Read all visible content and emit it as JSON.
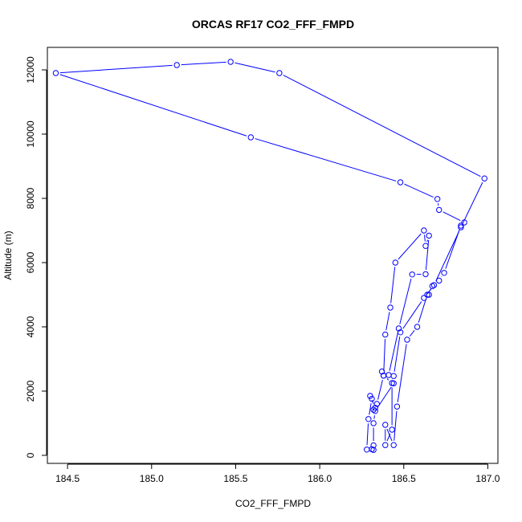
{
  "chart_data": {
    "type": "line",
    "title": "ORCAS RF17 CO2_FFF_FMPD",
    "xlabel": "CO2_FFF_FMPD",
    "ylabel": "Altitude (m)",
    "xlim": [
      184.38,
      187.06
    ],
    "ylim": [
      -250,
      12700
    ],
    "xticks": [
      184.5,
      185.0,
      185.5,
      186.0,
      186.5,
      187.0
    ],
    "xtick_labels": [
      "184.5",
      "185.0",
      "185.5",
      "186.0",
      "186.5",
      "187.0"
    ],
    "yticks": [
      0,
      2000,
      4000,
      6000,
      8000,
      10000,
      12000
    ],
    "ytick_labels": [
      "0",
      "2000",
      "4000",
      "6000",
      "8000",
      "10000",
      "12000"
    ],
    "grid": false,
    "color": "#0000ff",
    "series": [
      {
        "x": [
          186.32,
          186.28,
          186.29,
          186.31,
          186.3,
          186.33,
          186.32,
          186.34,
          186.38,
          186.37,
          186.38,
          186.39,
          186.42,
          186.45,
          186.62,
          186.63,
          186.65,
          186.63,
          186.55,
          186.47,
          186.41,
          186.38,
          186.43,
          186.43,
          186.39,
          186.39,
          186.44,
          186.46,
          186.52,
          186.58,
          186.64,
          186.65,
          186.67,
          186.71,
          186.74,
          186.84,
          186.86,
          186.71,
          186.7,
          186.48,
          185.59,
          184.43,
          185.15,
          185.47,
          185.76,
          186.98,
          186.84,
          186.68,
          186.62,
          186.48,
          186.44,
          186.44,
          186.33,
          186.32,
          186.32,
          186.31
        ],
        "y": [
          170,
          180,
          1130,
          1760,
          1850,
          1480,
          1420,
          1600,
          2480,
          2610,
          2480,
          3760,
          4600,
          6000,
          7000,
          6520,
          6840,
          5640,
          5630,
          3950,
          2500,
          2480,
          2250,
          800,
          320,
          950,
          320,
          1520,
          3600,
          4000,
          5000,
          5000,
          5270,
          5440,
          5680,
          7150,
          7250,
          7640,
          7980,
          8500,
          9900,
          11900,
          12150,
          12250,
          11900,
          8620,
          7100,
          5300,
          4900,
          3830,
          2470,
          2240,
          1380,
          1000,
          310,
          190
        ]
      }
    ]
  }
}
